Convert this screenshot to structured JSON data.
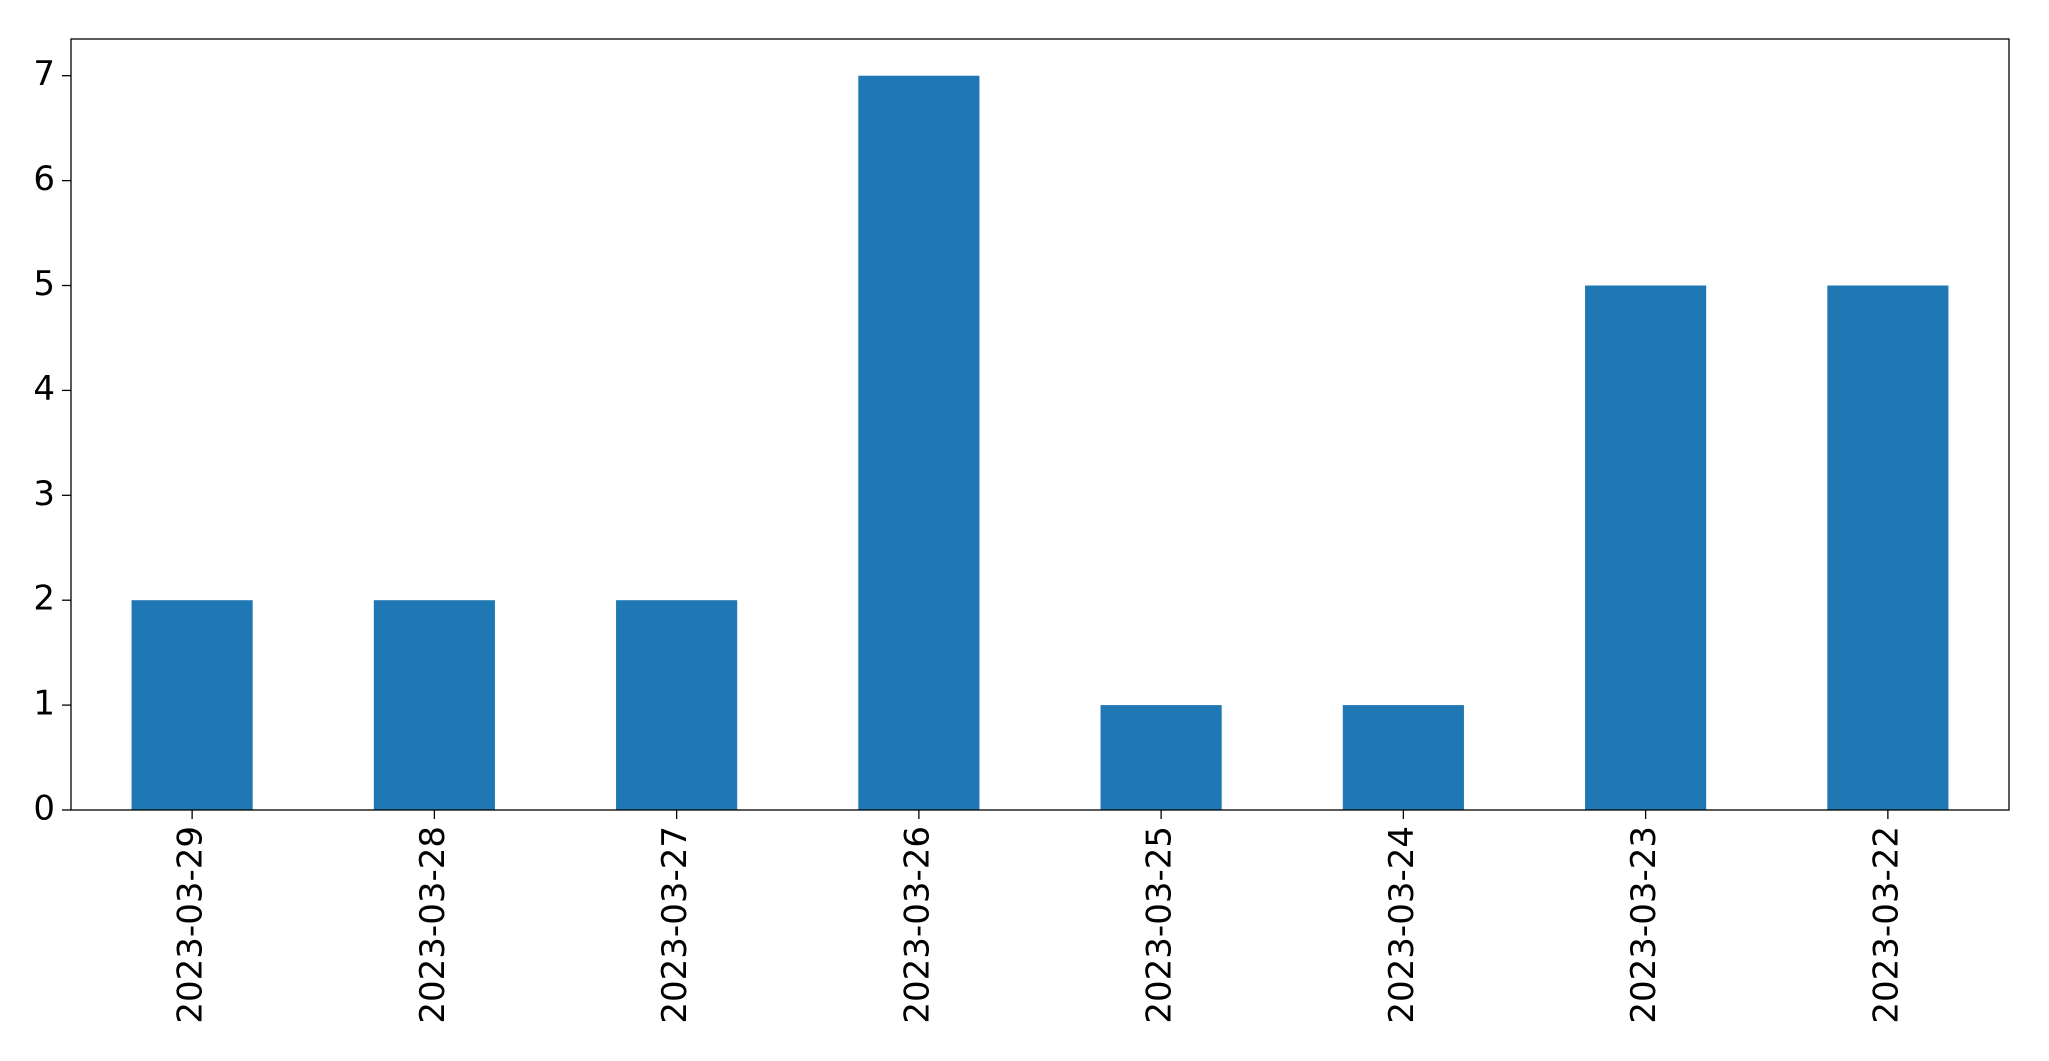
{
  "chart_data": {
    "type": "bar",
    "categories": [
      "2023-03-29",
      "2023-03-28",
      "2023-03-27",
      "2023-03-26",
      "2023-03-25",
      "2023-03-24",
      "2023-03-23",
      "2023-03-22"
    ],
    "values": [
      2,
      2,
      2,
      7,
      1,
      1,
      5,
      5
    ],
    "color": "#1f77b4",
    "ylim": [
      0,
      7.35
    ],
    "yticks": [
      0,
      1,
      2,
      3,
      4,
      5,
      6,
      7
    ],
    "grid": false
  }
}
